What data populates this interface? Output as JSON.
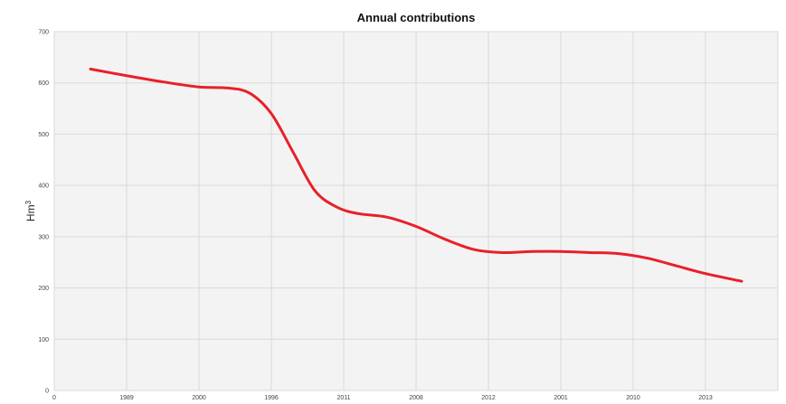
{
  "chart_data": {
    "type": "line",
    "title": "Annual contributions",
    "ylabel_base": "Hm",
    "ylabel_exp": "3",
    "xlabel": "",
    "ylim": [
      0,
      700
    ],
    "yticks": [
      0,
      100,
      200,
      300,
      400,
      500,
      600,
      700
    ],
    "xlim": [
      0,
      100
    ],
    "xticks": [
      {
        "pos": 0,
        "label": "0"
      },
      {
        "pos": 10,
        "label": "1989"
      },
      {
        "pos": 20,
        "label": "2000"
      },
      {
        "pos": 30,
        "label": "1996"
      },
      {
        "pos": 40,
        "label": "2011"
      },
      {
        "pos": 50,
        "label": "2008"
      },
      {
        "pos": 60,
        "label": "2012"
      },
      {
        "pos": 70,
        "label": "2001"
      },
      {
        "pos": 80,
        "label": "2010"
      },
      {
        "pos": 90,
        "label": "2013"
      }
    ],
    "grid": true,
    "series": [
      {
        "color": "#e8202a",
        "x": [
          5,
          10,
          15,
          20,
          24,
          27,
          30,
          33,
          36,
          39,
          42,
          46,
          50,
          54,
          58,
          62,
          66,
          70,
          74,
          78,
          82,
          86,
          90,
          95
        ],
        "y": [
          627,
          614,
          602,
          592,
          590,
          580,
          540,
          465,
          390,
          358,
          345,
          338,
          320,
          295,
          275,
          269,
          271,
          271,
          269,
          267,
          258,
          243,
          228,
          213
        ]
      }
    ]
  }
}
